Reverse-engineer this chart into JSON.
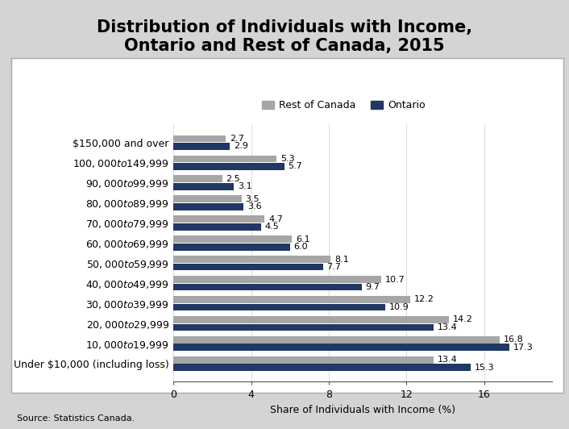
{
  "title": "Distribution of Individuals with Income,\nOntario and Rest of Canada, 2015",
  "categories": [
    "$150,000 and over",
    "$100,000 to $149,999",
    "$90,000 to $99,999",
    "$80,000 to $89,999",
    "$70,000 to $79,999",
    "$60,000 to $69,999",
    "$50,000 to $59,999",
    "$40,000 to $49,999",
    "$30,000 to $39,999",
    "$20,000 to $29,999",
    "$10,000 to $19,999",
    "Under $10,000 (including loss)"
  ],
  "rest_of_canada": [
    2.7,
    5.3,
    2.5,
    3.5,
    4.7,
    6.1,
    8.1,
    10.7,
    12.2,
    14.2,
    16.8,
    13.4
  ],
  "ontario": [
    2.9,
    5.7,
    3.1,
    3.6,
    4.5,
    6.0,
    7.7,
    9.7,
    10.9,
    13.4,
    17.3,
    15.3
  ],
  "color_roc": "#a6a6a6",
  "color_ontario": "#1f3864",
  "xlabel": "Share of Individuals with Income (%)",
  "legend_labels": [
    "Rest of Canada",
    "Ontario"
  ],
  "source": "Source: Statistics Canada.",
  "xlim": [
    0,
    19.5
  ],
  "xticks": [
    0,
    4,
    8,
    12,
    16
  ],
  "background_outer": "#d4d4d4",
  "background_inner": "#ffffff",
  "title_fontsize": 15,
  "label_fontsize": 9,
  "tick_fontsize": 9,
  "value_fontsize": 8
}
